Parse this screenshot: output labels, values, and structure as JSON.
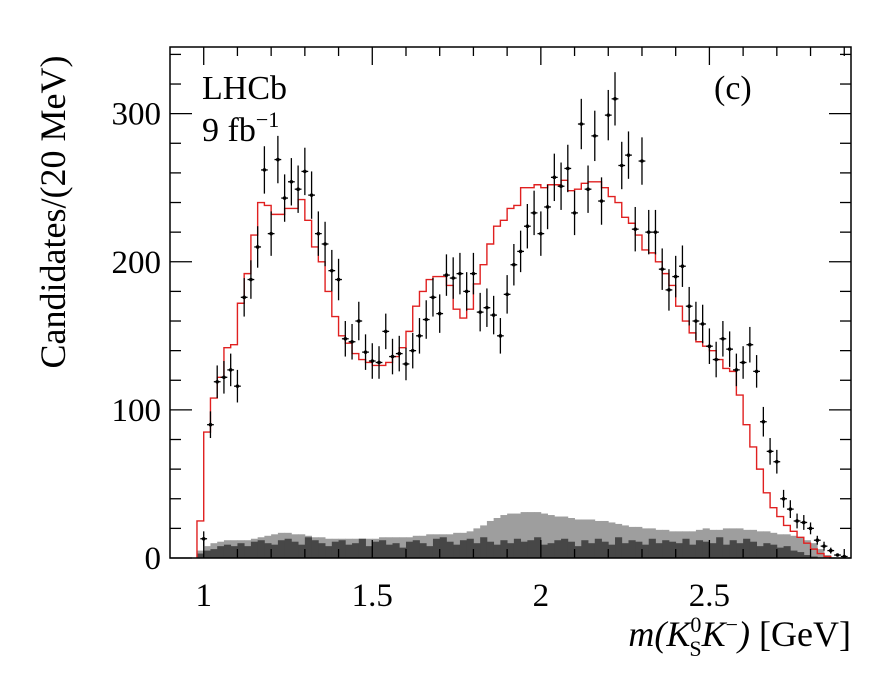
{
  "chart_data": {
    "type": "histogram",
    "title": "",
    "experiment": "LHCb",
    "luminosity": "9 fb",
    "luminosity_exponent": "−1",
    "panel_label": "(c)",
    "ylabel": "Candidates/(20 MeV)",
    "xlabel": {
      "prefix": "m(",
      "k0": "K",
      "k0_super": "0",
      "k0_sub": "S",
      "kminus": "K",
      "kminus_super": "−",
      "suffix": ")",
      "unit": " [GeV]"
    },
    "xlim": [
      0.9,
      2.92
    ],
    "ylim": [
      0,
      345
    ],
    "xticks": [
      {
        "value": 1.0,
        "label": "1"
      },
      {
        "value": 1.5,
        "label": "1.5"
      },
      {
        "value": 2.0,
        "label": "2"
      },
      {
        "value": 2.5,
        "label": "2.5"
      }
    ],
    "yticks": [
      {
        "value": 0,
        "label": "0"
      },
      {
        "value": 100,
        "label": "100"
      },
      {
        "value": 200,
        "label": "200"
      },
      {
        "value": 300,
        "label": "300"
      }
    ],
    "bin_width": 0.02,
    "data_points": [
      [
        1.0,
        13,
        5
      ],
      [
        1.02,
        90,
        9
      ],
      [
        1.04,
        119,
        11
      ],
      [
        1.06,
        122,
        11
      ],
      [
        1.08,
        127,
        11
      ],
      [
        1.1,
        116,
        11
      ],
      [
        1.12,
        176,
        13
      ],
      [
        1.14,
        188,
        13
      ],
      [
        1.16,
        210,
        14
      ],
      [
        1.18,
        262,
        16
      ],
      [
        1.2,
        219,
        15
      ],
      [
        1.22,
        269,
        16
      ],
      [
        1.24,
        243,
        16
      ],
      [
        1.26,
        254,
        16
      ],
      [
        1.28,
        249,
        16
      ],
      [
        1.3,
        261,
        16
      ],
      [
        1.32,
        245,
        16
      ],
      [
        1.34,
        219,
        15
      ],
      [
        1.36,
        212,
        15
      ],
      [
        1.38,
        194,
        14
      ],
      [
        1.4,
        188,
        14
      ],
      [
        1.42,
        148,
        12
      ],
      [
        1.44,
        146,
        12
      ],
      [
        1.46,
        160,
        13
      ],
      [
        1.48,
        139,
        12
      ],
      [
        1.5,
        133,
        12
      ],
      [
        1.52,
        132,
        11
      ],
      [
        1.54,
        153,
        12
      ],
      [
        1.56,
        136,
        12
      ],
      [
        1.58,
        138,
        12
      ],
      [
        1.6,
        131,
        11
      ],
      [
        1.62,
        140,
        12
      ],
      [
        1.64,
        150,
        12
      ],
      [
        1.66,
        161,
        13
      ],
      [
        1.68,
        176,
        13
      ],
      [
        1.7,
        165,
        13
      ],
      [
        1.72,
        191,
        14
      ],
      [
        1.74,
        189,
        14
      ],
      [
        1.76,
        192,
        14
      ],
      [
        1.78,
        180,
        13
      ],
      [
        1.8,
        192,
        14
      ],
      [
        1.82,
        166,
        13
      ],
      [
        1.84,
        169,
        13
      ],
      [
        1.86,
        164,
        13
      ],
      [
        1.88,
        150,
        12
      ],
      [
        1.9,
        178,
        13
      ],
      [
        1.92,
        198,
        14
      ],
      [
        1.94,
        207,
        14
      ],
      [
        1.96,
        224,
        15
      ],
      [
        1.98,
        233,
        15
      ],
      [
        2.0,
        219,
        15
      ],
      [
        2.02,
        237,
        15
      ],
      [
        2.04,
        257,
        16
      ],
      [
        2.06,
        251,
        16
      ],
      [
        2.08,
        263,
        16
      ],
      [
        2.1,
        233,
        15
      ],
      [
        2.12,
        293,
        17
      ],
      [
        2.14,
        249,
        16
      ],
      [
        2.16,
        285,
        17
      ],
      [
        2.18,
        241,
        16
      ],
      [
        2.2,
        299,
        17
      ],
      [
        2.22,
        310,
        18
      ],
      [
        2.24,
        265,
        16
      ],
      [
        2.26,
        272,
        16
      ],
      [
        2.28,
        222,
        15
      ],
      [
        2.3,
        268,
        16
      ],
      [
        2.32,
        220,
        15
      ],
      [
        2.34,
        220,
        15
      ],
      [
        2.36,
        195,
        14
      ],
      [
        2.38,
        181,
        14
      ],
      [
        2.4,
        190,
        14
      ],
      [
        2.42,
        197,
        14
      ],
      [
        2.44,
        170,
        13
      ],
      [
        2.46,
        160,
        13
      ],
      [
        2.48,
        158,
        13
      ],
      [
        2.5,
        143,
        12
      ],
      [
        2.52,
        134,
        12
      ],
      [
        2.54,
        148,
        12
      ],
      [
        2.56,
        141,
        12
      ],
      [
        2.58,
        127,
        11
      ],
      [
        2.6,
        132,
        11
      ],
      [
        2.62,
        144,
        12
      ],
      [
        2.64,
        126,
        11
      ],
      [
        2.66,
        92,
        10
      ],
      [
        2.68,
        72,
        9
      ],
      [
        2.7,
        65,
        8
      ],
      [
        2.72,
        40,
        6
      ],
      [
        2.74,
        33,
        6
      ],
      [
        2.76,
        25,
        5
      ],
      [
        2.78,
        24,
        5
      ],
      [
        2.8,
        20,
        4
      ],
      [
        2.82,
        12,
        3
      ],
      [
        2.84,
        8,
        3
      ],
      [
        2.86,
        5,
        2
      ],
      [
        2.88,
        2,
        1
      ],
      [
        2.9,
        1,
        1
      ]
    ],
    "fit_line": {
      "name": "fit",
      "color": "#e02020",
      "x_edges_start": 0.98,
      "values": [
        25,
        85,
        108,
        122,
        142,
        144,
        172,
        192,
        218,
        240,
        238,
        232,
        232,
        236,
        236,
        242,
        228,
        210,
        200,
        180,
        163,
        150,
        145,
        138,
        134,
        132,
        130,
        130,
        132,
        136,
        142,
        153,
        170,
        180,
        188,
        190,
        190,
        184,
        168,
        162,
        168,
        185,
        198,
        212,
        224,
        228,
        236,
        238,
        250,
        250,
        252,
        250,
        252,
        252,
        255,
        248,
        249,
        253,
        254,
        254,
        250,
        244,
        240,
        230,
        226,
        218,
        208,
        206,
        200,
        192,
        184,
        170,
        160,
        152,
        146,
        143,
        140,
        134,
        128,
        126,
        110,
        90,
        75,
        60,
        44,
        34,
        28,
        22,
        18,
        14,
        10,
        6,
        3,
        1
      ]
    },
    "background_light": {
      "name": "background (light)",
      "color": "#9e9e9e",
      "x_edges_start": 0.98,
      "values": [
        5,
        8,
        10,
        11,
        12,
        12,
        12,
        12,
        13,
        14,
        15,
        16,
        17,
        17,
        16,
        16,
        15,
        14,
        14,
        13,
        13,
        13,
        13,
        13,
        13,
        13,
        13,
        14,
        14,
        14,
        14,
        14,
        15,
        15,
        16,
        16,
        16,
        16,
        17,
        17,
        18,
        20,
        22,
        25,
        27,
        29,
        30,
        30,
        31,
        31,
        31,
        30,
        29,
        28,
        28,
        27,
        26,
        26,
        26,
        25,
        25,
        24,
        23,
        22,
        21,
        21,
        20,
        20,
        19,
        19,
        18,
        18,
        18,
        18,
        19,
        20,
        19,
        19,
        20,
        20,
        20,
        19,
        19,
        18,
        18,
        17,
        16,
        16,
        15,
        14,
        12,
        10,
        6,
        2,
        0,
        0
      ]
    },
    "background_dark": {
      "name": "background (dark)",
      "color": "#474747",
      "x_edges_start": 0.98,
      "values": [
        3,
        5,
        6,
        8,
        9,
        8,
        10,
        8,
        11,
        12,
        10,
        9,
        12,
        13,
        11,
        9,
        14,
        12,
        10,
        8,
        11,
        12,
        9,
        10,
        13,
        8,
        11,
        12,
        9,
        10,
        7,
        11,
        12,
        10,
        8,
        13,
        14,
        11,
        9,
        12,
        13,
        10,
        14,
        11,
        9,
        12,
        10,
        13,
        11,
        12,
        14,
        9,
        10,
        12,
        13,
        11,
        8,
        12,
        10,
        13,
        11,
        9,
        14,
        10,
        12,
        11,
        9,
        13,
        10,
        12,
        11,
        10,
        13,
        9,
        12,
        11,
        10,
        14,
        9,
        12,
        10,
        13,
        11,
        8,
        10,
        9,
        7,
        8,
        5,
        4,
        2,
        1,
        0,
        0
      ]
    }
  }
}
